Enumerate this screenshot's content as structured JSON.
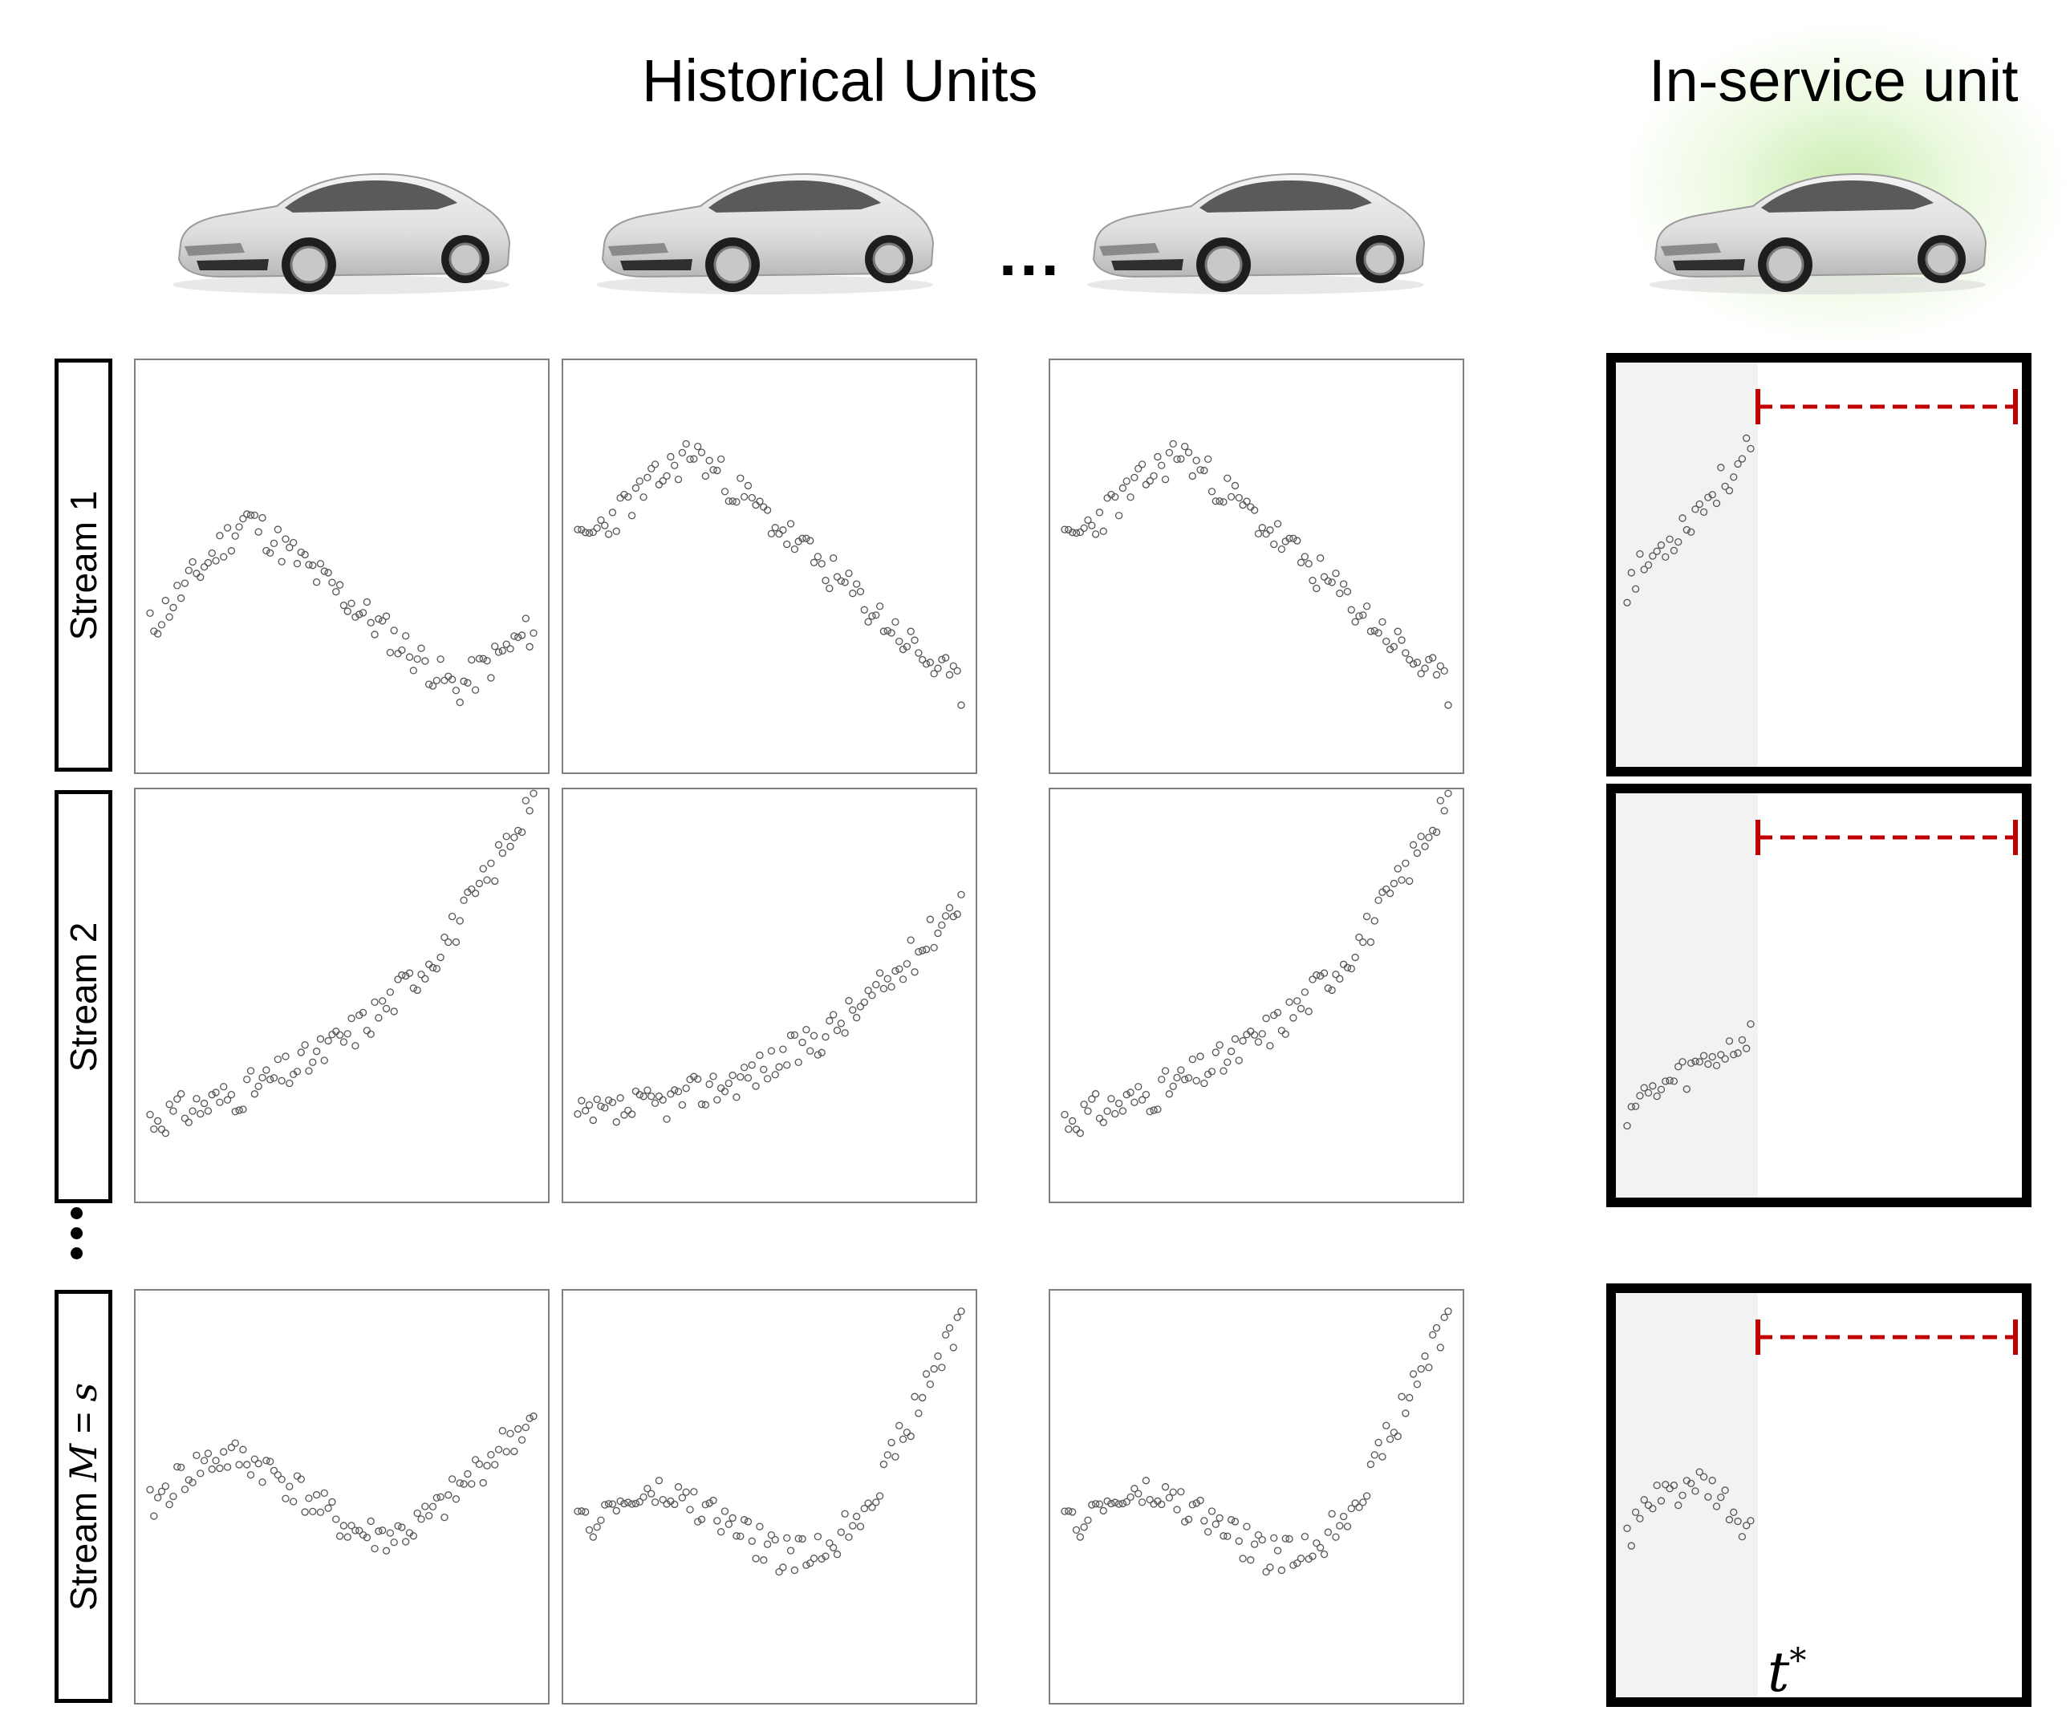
{
  "headers": {
    "historical": "Historical Units",
    "inservice": "In-service unit"
  },
  "streams": [
    {
      "label": "Stream 1"
    },
    {
      "label": "Stream 2"
    },
    {
      "label": "Stream M = s"
    }
  ],
  "stream3_label_parts": {
    "prefix": "Stream ",
    "var": "M",
    "eq": " = ",
    "val": "s"
  },
  "ellipsis": "...",
  "tstar_label": "t*",
  "colors": {
    "frame": "#000000",
    "panel_border": "#7f7f7f",
    "marker": "#555555",
    "horizon": "#c00000",
    "glow": "#a0dc6e",
    "shade": "#f2f2f2"
  },
  "icons": [
    "car-icon",
    "ellipsis-icon",
    "horizon-arrow-icon"
  ],
  "series": [
    [
      {
        "start": 0.35,
        "mid": 0.62,
        "end": 0.35,
        "shape": "hump-dip",
        "seed": 11
      },
      {
        "start": 0.55,
        "mid": 0.78,
        "end": 0.2,
        "shape": "hump-fall",
        "seed": 23
      },
      {
        "start": 0.55,
        "mid": 0.78,
        "end": 0.2,
        "shape": "hump-fall",
        "seed": 23
      }
    ],
    [
      {
        "start": 0.2,
        "end": 1.0,
        "shape": "exp",
        "seed": 31
      },
      {
        "start": 0.2,
        "end": 0.75,
        "shape": "exp",
        "seed": 37
      },
      {
        "start": 0.2,
        "end": 1.0,
        "shape": "exp",
        "seed": 31
      }
    ],
    [
      {
        "start": 0.35,
        "end": 0.65,
        "shape": "wave",
        "seed": 41
      },
      {
        "start": 0.33,
        "end": 0.88,
        "shape": "wave-rise",
        "seed": 47
      },
      {
        "start": 0.33,
        "end": 0.88,
        "shape": "wave-rise",
        "seed": 47
      }
    ]
  ],
  "inservice_series": [
    {
      "start": 0.45,
      "end": 0.78,
      "shape": "rise",
      "seed": 53
    },
    {
      "start": 0.22,
      "end": 0.4,
      "shape": "rise",
      "seed": 59
    },
    {
      "start": 0.4,
      "end": 0.38,
      "shape": "bump",
      "seed": 61
    }
  ]
}
